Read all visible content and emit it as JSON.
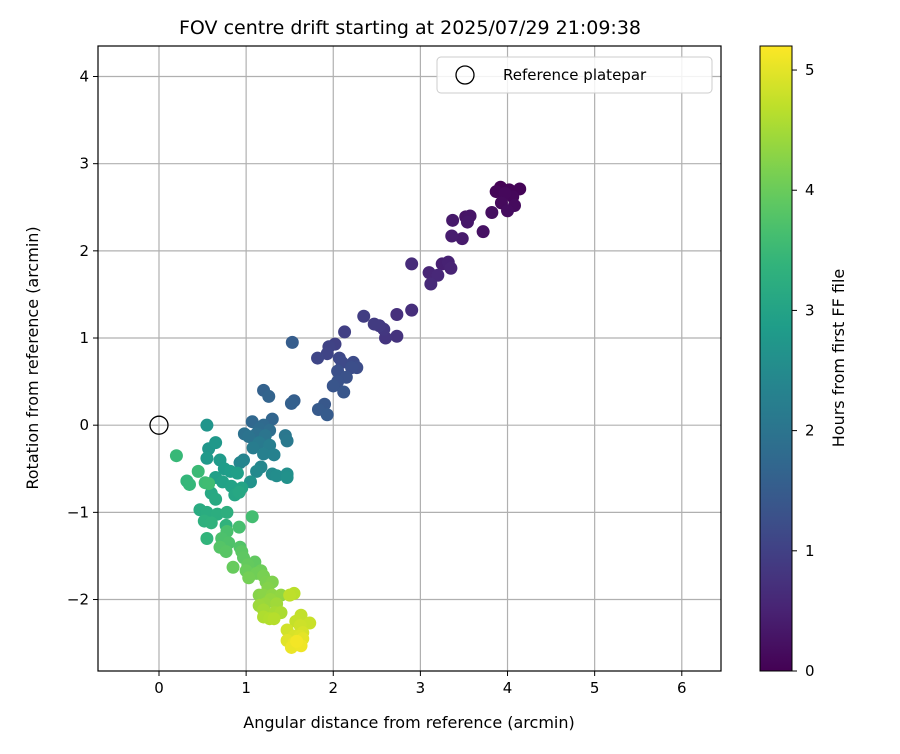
{
  "chart_data": {
    "type": "scatter",
    "title": "FOV centre drift starting at 2025/07/29 21:09:38",
    "xlabel": "Angular distance from reference (arcmin)",
    "ylabel": "Rotation from reference (arcmin)",
    "xlim": [
      -0.7,
      6.45
    ],
    "ylim": [
      -2.82,
      4.35
    ],
    "xticks": [
      0,
      1,
      2,
      3,
      4,
      5,
      6
    ],
    "yticks": [
      -2,
      -1,
      0,
      1,
      2,
      3,
      4
    ],
    "xtick_labels": [
      "0",
      "1",
      "2",
      "3",
      "4",
      "5",
      "6"
    ],
    "ytick_labels": [
      "−2",
      "−1",
      "0",
      "1",
      "2",
      "3",
      "4"
    ],
    "grid": true,
    "colormap": "viridis",
    "colorbar": {
      "label": "Hours from first FF file",
      "range": [
        0,
        5.2
      ],
      "ticks": [
        0,
        1,
        2,
        3,
        4,
        5
      ],
      "tick_labels": [
        "0",
        "1",
        "2",
        "3",
        "4",
        "5"
      ]
    },
    "legend": {
      "placement": "upper-right",
      "entries": [
        {
          "label": "Reference platepar",
          "marker": "open-circle",
          "color": "#000000"
        }
      ]
    },
    "reference_point": {
      "x": 0,
      "y": 0
    },
    "points": [
      {
        "x": 3.92,
        "y": 2.73,
        "t": 0.02
      },
      {
        "x": 4.02,
        "y": 2.7,
        "t": 0.03
      },
      {
        "x": 4.14,
        "y": 2.71,
        "t": 0.05
      },
      {
        "x": 3.87,
        "y": 2.68,
        "t": 0.07
      },
      {
        "x": 4.06,
        "y": 2.62,
        "t": 0.09
      },
      {
        "x": 3.97,
        "y": 2.66,
        "t": 0.11
      },
      {
        "x": 3.93,
        "y": 2.55,
        "t": 0.13
      },
      {
        "x": 4.08,
        "y": 2.52,
        "t": 0.15
      },
      {
        "x": 4.0,
        "y": 2.46,
        "t": 0.17
      },
      {
        "x": 3.82,
        "y": 2.44,
        "t": 0.2
      },
      {
        "x": 3.72,
        "y": 2.22,
        "t": 0.24
      },
      {
        "x": 3.52,
        "y": 2.39,
        "t": 0.28
      },
      {
        "x": 3.57,
        "y": 2.4,
        "t": 0.3
      },
      {
        "x": 3.54,
        "y": 2.33,
        "t": 0.33
      },
      {
        "x": 3.37,
        "y": 2.35,
        "t": 0.36
      },
      {
        "x": 3.48,
        "y": 2.14,
        "t": 0.39
      },
      {
        "x": 3.36,
        "y": 2.17,
        "t": 0.42
      },
      {
        "x": 3.25,
        "y": 1.85,
        "t": 0.46
      },
      {
        "x": 3.32,
        "y": 1.87,
        "t": 0.49
      },
      {
        "x": 3.35,
        "y": 1.8,
        "t": 0.52
      },
      {
        "x": 3.1,
        "y": 1.75,
        "t": 0.55
      },
      {
        "x": 3.2,
        "y": 1.72,
        "t": 0.58
      },
      {
        "x": 3.12,
        "y": 1.62,
        "t": 0.61
      },
      {
        "x": 2.9,
        "y": 1.85,
        "t": 0.64
      },
      {
        "x": 2.9,
        "y": 1.32,
        "t": 0.68
      },
      {
        "x": 2.73,
        "y": 1.27,
        "t": 0.72
      },
      {
        "x": 2.73,
        "y": 1.02,
        "t": 0.76
      },
      {
        "x": 2.6,
        "y": 1.0,
        "t": 0.8
      },
      {
        "x": 2.58,
        "y": 1.1,
        "t": 0.84
      },
      {
        "x": 2.53,
        "y": 1.14,
        "t": 0.87
      },
      {
        "x": 2.47,
        "y": 1.16,
        "t": 0.9
      },
      {
        "x": 2.35,
        "y": 1.25,
        "t": 0.93
      },
      {
        "x": 2.13,
        "y": 1.07,
        "t": 0.97
      },
      {
        "x": 2.02,
        "y": 0.93,
        "t": 1.0
      },
      {
        "x": 1.95,
        "y": 0.9,
        "t": 1.03
      },
      {
        "x": 1.93,
        "y": 0.82,
        "t": 1.06
      },
      {
        "x": 1.82,
        "y": 0.77,
        "t": 1.09
      },
      {
        "x": 2.07,
        "y": 0.77,
        "t": 1.12
      },
      {
        "x": 2.1,
        "y": 0.72,
        "t": 1.15
      },
      {
        "x": 2.23,
        "y": 0.72,
        "t": 1.18
      },
      {
        "x": 2.27,
        "y": 0.66,
        "t": 1.21
      },
      {
        "x": 2.21,
        "y": 0.66,
        "t": 1.24
      },
      {
        "x": 2.05,
        "y": 0.62,
        "t": 1.27
      },
      {
        "x": 2.15,
        "y": 0.55,
        "t": 1.3
      },
      {
        "x": 2.05,
        "y": 0.5,
        "t": 1.33
      },
      {
        "x": 2.0,
        "y": 0.45,
        "t": 1.36
      },
      {
        "x": 2.12,
        "y": 0.38,
        "t": 1.39
      },
      {
        "x": 1.9,
        "y": 0.24,
        "t": 1.43
      },
      {
        "x": 1.83,
        "y": 0.18,
        "t": 1.46
      },
      {
        "x": 1.93,
        "y": 0.12,
        "t": 1.49
      },
      {
        "x": 1.53,
        "y": 0.95,
        "t": 1.52
      },
      {
        "x": 1.55,
        "y": 0.28,
        "t": 1.55
      },
      {
        "x": 1.52,
        "y": 0.25,
        "t": 1.58
      },
      {
        "x": 1.2,
        "y": 0.4,
        "t": 1.62
      },
      {
        "x": 1.26,
        "y": 0.33,
        "t": 1.66
      },
      {
        "x": 1.3,
        "y": 0.07,
        "t": 1.7
      },
      {
        "x": 1.07,
        "y": 0.04,
        "t": 1.74
      },
      {
        "x": 1.2,
        "y": 0.0,
        "t": 1.78
      },
      {
        "x": 1.15,
        "y": -0.04,
        "t": 1.82
      },
      {
        "x": 1.27,
        "y": -0.06,
        "t": 1.86
      },
      {
        "x": 1.12,
        "y": -0.1,
        "t": 1.9
      },
      {
        "x": 0.98,
        "y": -0.1,
        "t": 1.94
      },
      {
        "x": 1.03,
        "y": -0.13,
        "t": 1.98
      },
      {
        "x": 1.22,
        "y": -0.12,
        "t": 2.02
      },
      {
        "x": 1.45,
        "y": -0.12,
        "t": 2.06
      },
      {
        "x": 1.47,
        "y": -0.18,
        "t": 2.1
      },
      {
        "x": 1.15,
        "y": -0.2,
        "t": 2.14
      },
      {
        "x": 1.08,
        "y": -0.26,
        "t": 2.18
      },
      {
        "x": 1.27,
        "y": -0.23,
        "t": 2.22
      },
      {
        "x": 1.2,
        "y": -0.33,
        "t": 2.26
      },
      {
        "x": 1.32,
        "y": -0.34,
        "t": 2.3
      },
      {
        "x": 0.97,
        "y": -0.4,
        "t": 2.34
      },
      {
        "x": 0.93,
        "y": -0.43,
        "t": 2.38
      },
      {
        "x": 1.17,
        "y": -0.48,
        "t": 2.42
      },
      {
        "x": 1.12,
        "y": -0.53,
        "t": 2.46
      },
      {
        "x": 1.3,
        "y": -0.56,
        "t": 2.5
      },
      {
        "x": 1.35,
        "y": -0.58,
        "t": 2.54
      },
      {
        "x": 1.47,
        "y": -0.56,
        "t": 2.58
      },
      {
        "x": 1.47,
        "y": -0.6,
        "t": 2.62
      },
      {
        "x": 1.05,
        "y": -0.65,
        "t": 2.66
      },
      {
        "x": 0.55,
        "y": 0.0,
        "t": 2.7
      },
      {
        "x": 0.57,
        "y": -0.27,
        "t": 2.73
      },
      {
        "x": 0.65,
        "y": -0.2,
        "t": 2.76
      },
      {
        "x": 0.55,
        "y": -0.38,
        "t": 2.79
      },
      {
        "x": 0.7,
        "y": -0.4,
        "t": 2.82
      },
      {
        "x": 0.75,
        "y": -0.5,
        "t": 2.85
      },
      {
        "x": 0.82,
        "y": -0.53,
        "t": 2.88
      },
      {
        "x": 0.9,
        "y": -0.55,
        "t": 2.91
      },
      {
        "x": 0.65,
        "y": -0.6,
        "t": 2.94
      },
      {
        "x": 0.73,
        "y": -0.65,
        "t": 2.97
      },
      {
        "x": 0.83,
        "y": -0.7,
        "t": 3.0
      },
      {
        "x": 0.95,
        "y": -0.72,
        "t": 3.03
      },
      {
        "x": 0.87,
        "y": -0.8,
        "t": 3.06
      },
      {
        "x": 0.92,
        "y": -0.77,
        "t": 3.09
      },
      {
        "x": 0.6,
        "y": -0.78,
        "t": 3.12
      },
      {
        "x": 0.65,
        "y": -0.85,
        "t": 3.15
      },
      {
        "x": 0.47,
        "y": -0.97,
        "t": 3.18
      },
      {
        "x": 0.55,
        "y": -1.0,
        "t": 3.21
      },
      {
        "x": 0.67,
        "y": -1.02,
        "t": 3.24
      },
      {
        "x": 0.78,
        "y": -1.0,
        "t": 3.27
      },
      {
        "x": 0.52,
        "y": -1.1,
        "t": 3.3
      },
      {
        "x": 0.6,
        "y": -1.12,
        "t": 3.33
      },
      {
        "x": 0.77,
        "y": -1.15,
        "t": 3.36
      },
      {
        "x": 0.55,
        "y": -1.3,
        "t": 3.4
      },
      {
        "x": 0.32,
        "y": -0.64,
        "t": 3.44
      },
      {
        "x": 0.35,
        "y": -0.68,
        "t": 3.47
      },
      {
        "x": 0.2,
        "y": -0.35,
        "t": 3.5
      },
      {
        "x": 0.45,
        "y": -0.53,
        "t": 3.53
      },
      {
        "x": 0.53,
        "y": -0.66,
        "t": 3.56
      },
      {
        "x": 0.57,
        "y": -0.67,
        "t": 3.59
      },
      {
        "x": 1.07,
        "y": -1.05,
        "t": 3.62
      },
      {
        "x": 0.92,
        "y": -1.17,
        "t": 3.65
      },
      {
        "x": 0.78,
        "y": -1.22,
        "t": 3.68
      },
      {
        "x": 0.72,
        "y": -1.3,
        "t": 3.71
      },
      {
        "x": 0.8,
        "y": -1.35,
        "t": 3.74
      },
      {
        "x": 0.93,
        "y": -1.4,
        "t": 3.77
      },
      {
        "x": 0.7,
        "y": -1.4,
        "t": 3.8
      },
      {
        "x": 0.77,
        "y": -1.45,
        "t": 3.83
      },
      {
        "x": 0.95,
        "y": -1.45,
        "t": 3.86
      },
      {
        "x": 0.97,
        "y": -1.52,
        "t": 3.89
      },
      {
        "x": 1.1,
        "y": -1.57,
        "t": 3.92
      },
      {
        "x": 1.02,
        "y": -1.6,
        "t": 3.95
      },
      {
        "x": 0.85,
        "y": -1.63,
        "t": 3.98
      },
      {
        "x": 1.0,
        "y": -1.67,
        "t": 4.01
      },
      {
        "x": 1.17,
        "y": -1.67,
        "t": 4.04
      },
      {
        "x": 1.12,
        "y": -1.7,
        "t": 4.07
      },
      {
        "x": 1.03,
        "y": -1.75,
        "t": 4.1
      },
      {
        "x": 1.2,
        "y": -1.73,
        "t": 4.13
      },
      {
        "x": 1.23,
        "y": -1.8,
        "t": 4.16
      },
      {
        "x": 1.3,
        "y": -1.8,
        "t": 4.19
      },
      {
        "x": 1.25,
        "y": -1.87,
        "t": 4.22
      },
      {
        "x": 1.15,
        "y": -1.95,
        "t": 4.25
      },
      {
        "x": 1.2,
        "y": -1.95,
        "t": 4.28
      },
      {
        "x": 1.3,
        "y": -1.95,
        "t": 4.31
      },
      {
        "x": 1.4,
        "y": -1.95,
        "t": 4.34
      },
      {
        "x": 1.28,
        "y": -2.0,
        "t": 4.37
      },
      {
        "x": 1.22,
        "y": -2.05,
        "t": 4.4
      },
      {
        "x": 1.15,
        "y": -2.07,
        "t": 4.43
      },
      {
        "x": 1.35,
        "y": -2.05,
        "t": 4.46
      },
      {
        "x": 1.2,
        "y": -2.12,
        "t": 4.49
      },
      {
        "x": 1.33,
        "y": -2.15,
        "t": 4.52
      },
      {
        "x": 1.4,
        "y": -2.15,
        "t": 4.55
      },
      {
        "x": 1.2,
        "y": -2.2,
        "t": 4.58
      },
      {
        "x": 1.27,
        "y": -2.22,
        "t": 4.61
      },
      {
        "x": 1.32,
        "y": -2.22,
        "t": 4.64
      },
      {
        "x": 1.55,
        "y": -1.93,
        "t": 4.67
      },
      {
        "x": 1.5,
        "y": -1.95,
        "t": 4.7
      },
      {
        "x": 1.63,
        "y": -2.18,
        "t": 4.73
      },
      {
        "x": 1.57,
        "y": -2.25,
        "t": 4.76
      },
      {
        "x": 1.73,
        "y": -2.27,
        "t": 4.79
      },
      {
        "x": 1.62,
        "y": -2.3,
        "t": 4.82
      },
      {
        "x": 1.47,
        "y": -2.35,
        "t": 4.85
      },
      {
        "x": 1.65,
        "y": -2.38,
        "t": 4.88
      },
      {
        "x": 1.55,
        "y": -2.42,
        "t": 4.91
      },
      {
        "x": 1.62,
        "y": -2.42,
        "t": 4.94
      },
      {
        "x": 1.47,
        "y": -2.47,
        "t": 4.97
      },
      {
        "x": 1.65,
        "y": -2.45,
        "t": 5.0
      },
      {
        "x": 1.55,
        "y": -2.5,
        "t": 5.03
      },
      {
        "x": 1.52,
        "y": -2.55,
        "t": 5.06
      },
      {
        "x": 1.63,
        "y": -2.53,
        "t": 5.09
      },
      {
        "x": 1.58,
        "y": -2.48,
        "t": 5.12
      }
    ]
  }
}
